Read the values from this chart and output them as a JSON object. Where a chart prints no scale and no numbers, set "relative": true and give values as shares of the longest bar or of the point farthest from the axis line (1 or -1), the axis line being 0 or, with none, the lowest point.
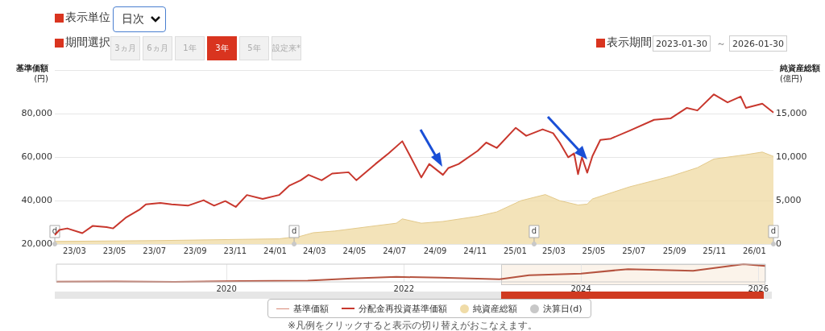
{
  "chart_data": [
    {
      "type": "line",
      "ylabel": "基準価額\n(円)",
      "y2label": "純資産総額\n(億円)",
      "xlim": [
        "2023-01-30",
        "2026-01-30"
      ],
      "xticks": [
        {
          "value": "2023-03-01",
          "label": "23/03"
        },
        {
          "value": "2023-05-01",
          "label": "23/05"
        },
        {
          "value": "2023-07-01",
          "label": "23/07"
        },
        {
          "value": "2023-09-01",
          "label": "23/09"
        },
        {
          "value": "2023-11-01",
          "label": "23/11"
        },
        {
          "value": "2024-01-01",
          "label": "24/01"
        },
        {
          "value": "2024-03-01",
          "label": "24/03"
        },
        {
          "value": "2024-05-01",
          "label": "24/05"
        },
        {
          "value": "2024-07-01",
          "label": "24/07"
        },
        {
          "value": "2024-09-01",
          "label": "24/09"
        },
        {
          "value": "2024-11-01",
          "label": "24/11"
        },
        {
          "value": "2025-01-01",
          "label": "25/01"
        },
        {
          "value": "2025-03-01",
          "label": "25/03"
        },
        {
          "value": "2025-05-01",
          "label": "25/05"
        },
        {
          "value": "2025-07-01",
          "label": "25/07"
        },
        {
          "value": "2025-09-01",
          "label": "25/09"
        },
        {
          "value": "2025-11-01",
          "label": "25/11"
        },
        {
          "value": "2026-01-01",
          "label": "26/01"
        }
      ],
      "ylim": [
        20000,
        100000
      ],
      "yticks": [
        {
          "value": 20000,
          "label": "20,000"
        },
        {
          "value": 40000,
          "label": "40,000"
        },
        {
          "value": 60000,
          "label": "60,000"
        },
        {
          "value": 80000,
          "label": "80,000"
        },
        {
          "value": 100000,
          "label": null
        }
      ],
      "y2lim": [
        0,
        20000
      ],
      "y2ticks": [
        0,
        {
          "value": 5000,
          "label": "5,000"
        },
        {
          "value": 10000,
          "label": "10,000"
        },
        {
          "value": 15000,
          "label": "15,000"
        },
        {
          "value": 20000,
          "label": null
        }
      ],
      "grid": "y",
      "legend": "bottom",
      "annotations": [
        "表示単位",
        "日次",
        "期間選択",
        "3ヵ月",
        "6ヵ月",
        "1年",
        "3年",
        "5年",
        "設定来*",
        "表示期間",
        "2023-01-30",
        "～",
        "2026-01-30",
        "※凡例をクリックすると表示の切り替えがおこなえます。"
      ],
      "series": [
        {
          "name": "基準価額",
          "type": "line",
          "color": "#d98b78"
        },
        {
          "name": "分配金再投資基準価額",
          "type": "line",
          "color": "#c8372d",
          "x": [
            "2023-01-30",
            "2023-02-06",
            "2023-02-18",
            "2023-03-13",
            "2023-03-29",
            "2023-04-19",
            "2023-04-29",
            "2023-05-18",
            "2023-06-08",
            "2023-06-18",
            "2023-07-10",
            "2023-07-27",
            "2023-08-21",
            "2023-09-14",
            "2023-09-30",
            "2023-10-17",
            "2023-11-02",
            "2023-11-19",
            "2023-12-13",
            "2024-01-07",
            "2024-01-23",
            "2024-02-09",
            "2024-02-21",
            "2024-03-12",
            "2024-03-28",
            "2024-04-22",
            "2024-05-04",
            "2024-06-02",
            "2024-06-22",
            "2024-07-13",
            "2024-07-25",
            "2024-08-11",
            "2024-08-23",
            "2024-09-13",
            "2024-09-21",
            "2024-10-07",
            "2024-11-05",
            "2024-11-18",
            "2024-12-04",
            "2025-01-02",
            "2025-01-18",
            "2025-02-12",
            "2025-02-28",
            "2025-03-10",
            "2025-03-23",
            "2025-04-01",
            "2025-04-07",
            "2025-04-13",
            "2025-04-21",
            "2025-04-29",
            "2025-05-11",
            "2025-05-27",
            "2025-06-25",
            "2025-08-01",
            "2025-08-26",
            "2025-09-20",
            "2025-10-06",
            "2025-10-31",
            "2025-11-21",
            "2025-12-11",
            "2025-12-19",
            "2026-01-13",
            "2026-01-30"
          ],
          "values": [
            24100,
            26500,
            27200,
            25000,
            28400,
            27800,
            27200,
            32100,
            35800,
            38300,
            38900,
            38300,
            37700,
            40200,
            37700,
            39800,
            37100,
            42600,
            40800,
            42600,
            47000,
            49400,
            51900,
            49400,
            52500,
            53100,
            49400,
            56900,
            61800,
            67400,
            60600,
            50700,
            56900,
            51900,
            55000,
            56900,
            63000,
            66800,
            64300,
            73600,
            69900,
            72900,
            71100,
            66800,
            60000,
            61800,
            52200,
            60000,
            52900,
            60600,
            68000,
            68600,
            72300,
            77300,
            77900,
            82800,
            81600,
            89000,
            85300,
            88000,
            82800,
            84700,
            80600
          ]
        },
        {
          "name": "純資産総額",
          "type": "area",
          "axis": "y2",
          "color": "#f0dca8",
          "x": [
            "2023-01-30",
            "2023-07-10",
            "2024-01-07",
            "2024-02-09",
            "2024-02-28",
            "2024-04-01",
            "2024-06-02",
            "2024-07-04",
            "2024-07-13",
            "2024-08-11",
            "2024-09-13",
            "2024-11-05",
            "2024-12-04",
            "2025-01-10",
            "2025-02-16",
            "2025-03-10",
            "2025-04-07",
            "2025-04-21",
            "2025-04-29",
            "2025-06-25",
            "2025-08-26",
            "2025-10-06",
            "2025-10-31",
            "2025-12-19",
            "2026-01-13",
            "2026-01-30"
          ],
          "values": [
            300,
            400,
            600,
            900,
            1300,
            1500,
            2100,
            2400,
            2900,
            2400,
            2600,
            3200,
            3700,
            5000,
            5700,
            5000,
            4500,
            4600,
            5200,
            6600,
            7800,
            8800,
            9800,
            10300,
            10600,
            10100
          ]
        },
        {
          "name": "決算日(d)",
          "type": "scatter",
          "color": "#c8c8c8",
          "x": [
            "2023-01-30",
            "2024-01-30",
            "2025-01-30",
            "2026-01-30"
          ],
          "values": [
            20000,
            20000,
            20000,
            20000
          ],
          "value_labels": [
            "d",
            "d",
            "d",
            "d"
          ]
        }
      ]
    },
    {
      "type": "line",
      "relative": true,
      "tick_labels": "x",
      "grid": "x",
      "xlim": [
        "2018-01-30",
        "2026-01-30"
      ],
      "xticks": [
        {
          "value": "2020-01-01",
          "label": "2020"
        },
        {
          "value": "2022-01-01",
          "label": "2022"
        },
        {
          "value": "2024-01-01",
          "label": "2024"
        },
        {
          "value": "2026-01-01",
          "label": "2026"
        }
      ],
      "series": [
        {
          "color": "#b5533f",
          "x": [
            "2018-01-30",
            "2018-10-01",
            "2019-06-01",
            "2020-03-01",
            "2020-12-01",
            "2021-06-01",
            "2021-12-01",
            "2022-06-01",
            "2022-12-01",
            "2023-01-30",
            "2023-06-01",
            "2024-01-01",
            "2024-07-13",
            "2025-04-07",
            "2025-11-01",
            "2026-01-30"
          ],
          "values": [
            0.01,
            0.02,
            0,
            0.04,
            0.07,
            0.19,
            0.28,
            0.24,
            0.17,
            0.15,
            0.37,
            0.47,
            0.72,
            0.62,
            1,
            0.9
          ]
        }
      ]
    }
  ]
}
